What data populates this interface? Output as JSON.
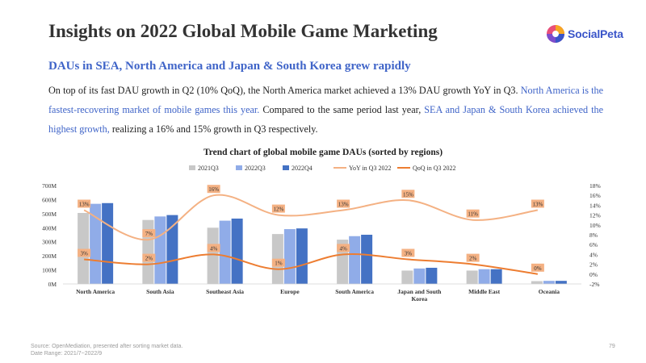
{
  "page": {
    "title": "Insights on 2022 Global Mobile Game Marketing",
    "logo_text": "SocialPeta",
    "subtitle": "DAUs in SEA, North America and Japan & South Korea grew rapidly",
    "paragraph": {
      "part1": "On top of its fast DAU growth in Q2 (10% QoQ), the North America market achieved a 13% DAU growth YoY in Q3. ",
      "highlight1": "North America is the fastest-recovering market of mobile games this year.",
      "part2": " Compared to the same period last year, ",
      "highlight2": "SEA and Japan & South Korea achieved the highest growth,",
      "part3": " realizing a 16% and 15% growth in Q3 respectively."
    },
    "source": "Source: OpenMediation, presented after sorting market data.",
    "date_range": "Date Range: 2021/7~2022/9",
    "page_number": "79"
  },
  "colors": {
    "q2021q3": "#c8c8c8",
    "q2022q3": "#90ace8",
    "q2022q4": "#4472c4",
    "yoy": "#f4b183",
    "qoq": "#ed7d31",
    "title_blue": "#3f64c8",
    "label_box": "#f4b183"
  },
  "chart_data": {
    "type": "bar",
    "title": "Trend chart of global mobile game DAUs (sorted by regions)",
    "categories": [
      "North America",
      "South Asia",
      "Southeast Asia",
      "Europe",
      "South America",
      "Japan and South Korea",
      "Middle East",
      "Oceania"
    ],
    "series": [
      {
        "name": "2021Q3",
        "type": "bar",
        "axis": "left",
        "values": [
          505,
          455,
          400,
          355,
          315,
          95,
          95,
          20
        ]
      },
      {
        "name": "2022Q3",
        "type": "bar",
        "axis": "left",
        "values": [
          570,
          480,
          450,
          390,
          340,
          110,
          105,
          22
        ]
      },
      {
        "name": "2022Q4",
        "type": "bar",
        "axis": "left",
        "values": [
          575,
          490,
          465,
          395,
          350,
          115,
          105,
          22
        ]
      },
      {
        "name": "YoY in Q3 2022",
        "type": "line",
        "axis": "right",
        "values": [
          13,
          7,
          16,
          12,
          13,
          15,
          11,
          13
        ],
        "labels": [
          "13%",
          "7%",
          "16%",
          "12%",
          "13%",
          "15%",
          "11%",
          "13%"
        ]
      },
      {
        "name": "QoQ in Q3 2022",
        "type": "line",
        "axis": "right",
        "values": [
          3,
          2,
          4,
          1,
          4,
          3,
          2,
          0
        ],
        "labels": [
          "3%",
          "2%",
          "4%",
          "1%",
          "4%",
          "3%",
          "2%",
          "0%"
        ]
      }
    ],
    "left_axis": {
      "min": 0,
      "max": 700,
      "ticks": [
        "0M",
        "100M",
        "200M",
        "300M",
        "400M",
        "500M",
        "600M",
        "700M"
      ]
    },
    "right_axis": {
      "min": -2,
      "max": 18,
      "ticks": [
        "-2%",
        "0%",
        "2%",
        "4%",
        "6%",
        "8%",
        "10%",
        "12%",
        "14%",
        "16%",
        "18%"
      ]
    },
    "legend_position": "top",
    "grid": false
  }
}
